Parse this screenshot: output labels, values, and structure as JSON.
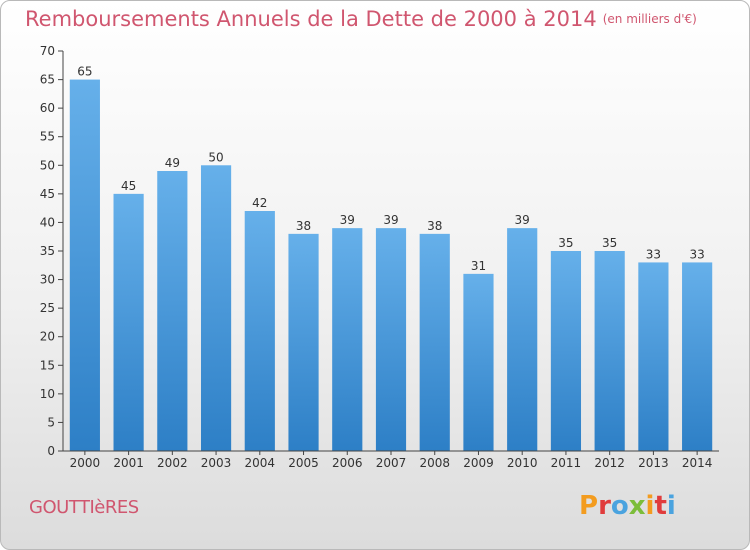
{
  "header": {
    "title": "Remboursements Annuels de la Dette de 2000 à 2014",
    "unit": "(en milliers d'€)"
  },
  "footer": {
    "commune": "GOUTTIèRES",
    "logo": "Proxiti"
  },
  "colors": {
    "title": "#d0566f",
    "bar_top": "#66b0ea",
    "bar_bottom": "#2d7fc6",
    "logo_letters": [
      "#f39c1f",
      "#e03c3c",
      "#4aa3df",
      "#7cbd3a",
      "#f39c1f",
      "#e03c3c",
      "#4aa3df"
    ]
  },
  "chart_data": {
    "type": "bar",
    "categories": [
      "2000",
      "2001",
      "2002",
      "2003",
      "2004",
      "2005",
      "2006",
      "2007",
      "2008",
      "2009",
      "2010",
      "2011",
      "2012",
      "2013",
      "2014"
    ],
    "values": [
      65,
      45,
      49,
      50,
      42,
      38,
      39,
      39,
      38,
      31,
      39,
      35,
      35,
      33,
      33
    ],
    "title": "Remboursements Annuels de la Dette de 2000 à 2014",
    "xlabel": "",
    "ylabel": "",
    "ylim": [
      0,
      70
    ],
    "yticks": [
      0,
      5,
      10,
      15,
      20,
      25,
      30,
      35,
      40,
      45,
      50,
      55,
      60,
      65,
      70
    ],
    "grid": false,
    "data_labels": true
  }
}
